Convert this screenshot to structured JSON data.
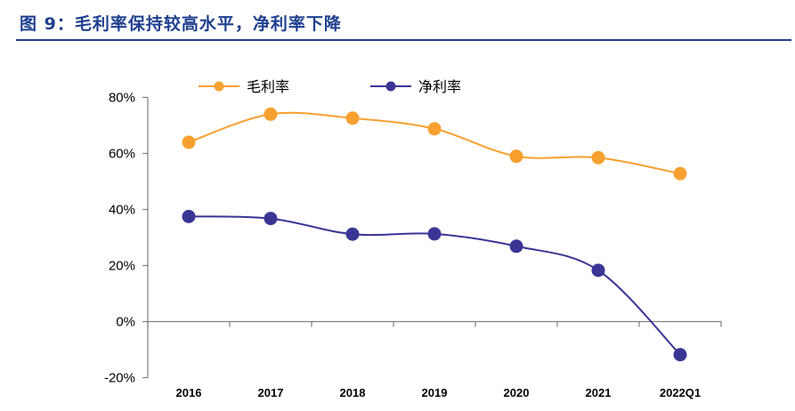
{
  "header": {
    "title": "图 9：毛利率保持较高水平，净利率下降"
  },
  "colors": {
    "title": "#1f3f8f",
    "gross": "#f7a030",
    "net": "#3a3595",
    "axis": "#7f7f7f"
  },
  "chart_data": {
    "type": "line",
    "title": "图 9：毛利率保持较高水平，净利率下降",
    "categories": [
      "2016",
      "2017",
      "2018",
      "2019",
      "2020",
      "2021",
      "2022Q1"
    ],
    "series": [
      {
        "name": "毛利率",
        "values": [
          64.0,
          74.0,
          72.6,
          68.8,
          59.0,
          58.5,
          52.8
        ]
      },
      {
        "name": "净利率",
        "values": [
          37.5,
          36.8,
          31.2,
          31.3,
          26.9,
          18.3,
          -11.8
        ]
      }
    ],
    "y_tick_labels": [
      "80%",
      "60%",
      "40%",
      "20%",
      "0%",
      "-20%"
    ],
    "y_ticks": [
      80,
      60,
      40,
      20,
      0,
      -20
    ],
    "ylim": [
      -20,
      80
    ],
    "xlabel": "",
    "ylabel": "",
    "smooth": true,
    "legend": "top-center",
    "grid": false
  }
}
